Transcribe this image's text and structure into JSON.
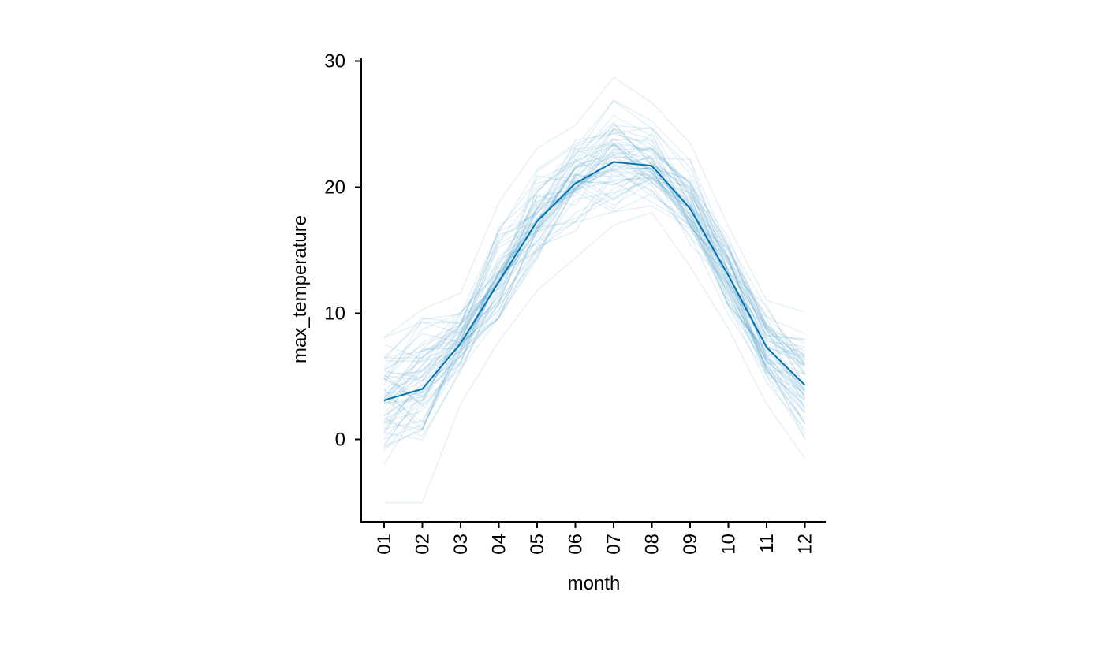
{
  "chart_data": {
    "type": "line",
    "title": "",
    "xlabel": "month",
    "ylabel": "max_temperature",
    "categories": [
      "01",
      "02",
      "03",
      "04",
      "05",
      "06",
      "07",
      "08",
      "09",
      "10",
      "11",
      "12"
    ],
    "ylim": [
      -6.5,
      30.5
    ],
    "yticks": [
      0,
      10,
      20,
      30
    ],
    "grid": false,
    "legend": "none",
    "colors": {
      "series": "#0072B2",
      "axis": "#000000"
    },
    "background_series_opacity": 0.1,
    "background_series_count": 60,
    "series": [
      {
        "values": [
          3.1,
          4.0,
          7.6,
          12.5,
          17.3,
          20.3,
          22.0,
          21.7,
          18.3,
          13.0,
          7.3,
          4.3
        ]
      }
    ],
    "series_range": {
      "min": [
        -5.0,
        -5.0,
        2.8,
        7.8,
        11.8,
        14.4,
        17.0,
        18.0,
        13.7,
        8.8,
        2.8,
        -1.5
      ],
      "max": [
        8.1,
        10.3,
        11.6,
        18.8,
        23.1,
        24.9,
        28.7,
        26.7,
        23.5,
        16.9,
        11.0,
        10.1
      ]
    }
  }
}
